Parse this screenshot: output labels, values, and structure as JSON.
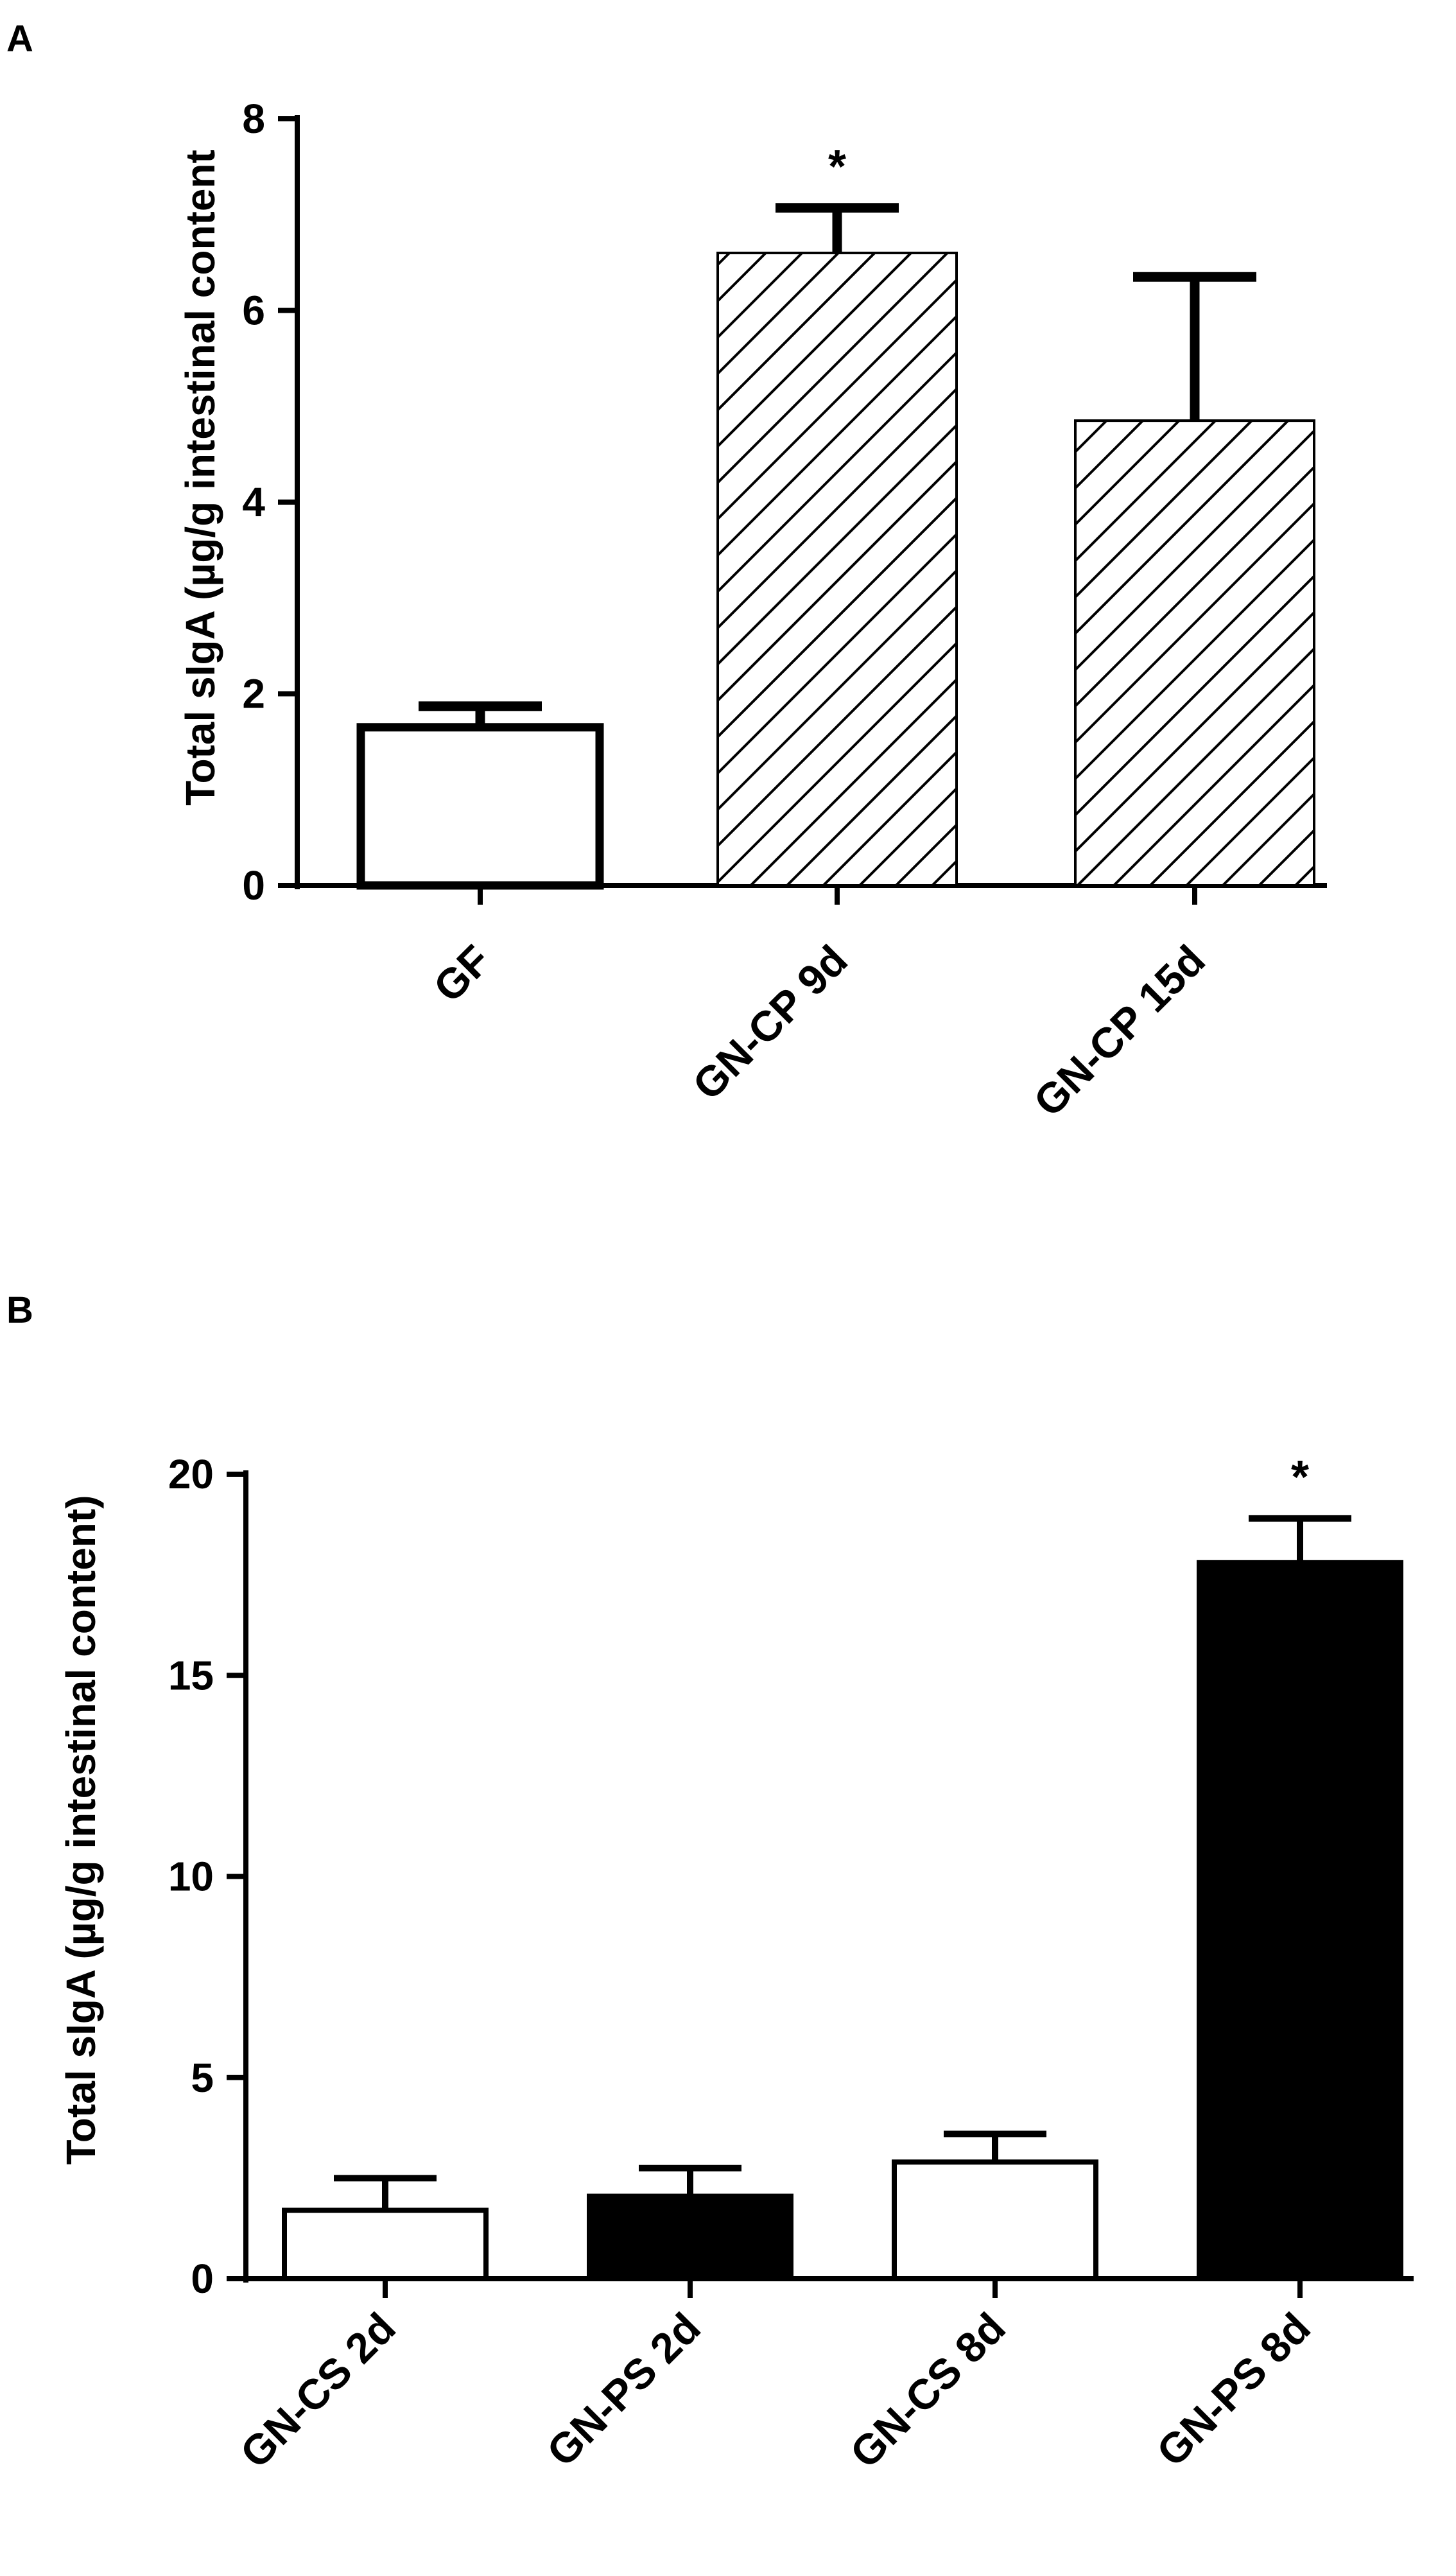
{
  "figure": {
    "background": "#ffffff"
  },
  "chart_data": [
    {
      "panel": "A",
      "type": "bar",
      "title": "",
      "xlabel": "",
      "ylabel": "Total sIgA (µg/g intestinal content",
      "ylim": [
        0,
        8
      ],
      "yticks": [
        "0",
        "2",
        "4",
        "6",
        "8"
      ],
      "categories": [
        "GF",
        "GN-CP 9d",
        "GN-CP 15d"
      ],
      "values": [
        1.65,
        6.6,
        4.85
      ],
      "errors": [
        0.22,
        0.47,
        1.5
      ],
      "fills": [
        "white",
        "hatch",
        "hatch"
      ],
      "annotations": [
        "",
        "*",
        ""
      ],
      "grid": false,
      "colors": {
        "bar_stroke": "#000000",
        "hatch": "#000000",
        "solid": "#000000",
        "open": "#ffffff"
      }
    },
    {
      "panel": "B",
      "type": "bar",
      "title": "",
      "xlabel": "",
      "ylabel": "Total sIgA (µg/g intestinal content)",
      "ylim": [
        0,
        20
      ],
      "yticks": [
        "0",
        "5",
        "10",
        "15",
        "20"
      ],
      "categories": [
        "GN-CS 2d",
        "GN-PS 2d",
        "GN-CS 8d",
        "GN-PS 8d"
      ],
      "values": [
        1.7,
        2.05,
        2.9,
        17.8
      ],
      "errors": [
        0.8,
        0.7,
        0.7,
        1.1
      ],
      "fills": [
        "white",
        "black",
        "white",
        "black"
      ],
      "annotations": [
        "",
        "",
        "",
        "*"
      ],
      "grid": false,
      "colors": {
        "bar_stroke": "#000000",
        "hatch": "#000000",
        "solid": "#000000",
        "open": "#ffffff"
      }
    }
  ]
}
